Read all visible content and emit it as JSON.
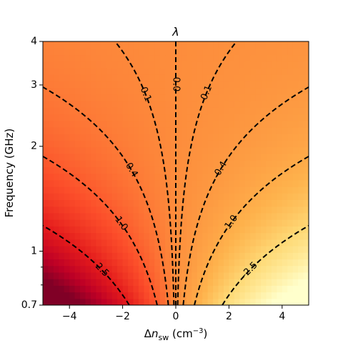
{
  "chart_data": {
    "type": "heatmap",
    "title": "λ",
    "xlabel_prefix": "Δ",
    "xlabel_var": "n",
    "xlabel_sub": "sw",
    "xlabel_unit": " (cm",
    "xlabel_unit_exp": "−3",
    "xlabel_unit_close": ")",
    "ylabel": "Frequency (GHz)",
    "xlim": [
      -5,
      5
    ],
    "ylim": [
      0.7,
      4
    ],
    "yscale": "log",
    "xticks": [
      {
        "value": -4,
        "label": "−4"
      },
      {
        "value": -2,
        "label": "−2"
      },
      {
        "value": 0,
        "label": "0"
      },
      {
        "value": 2,
        "label": "2"
      },
      {
        "value": 4,
        "label": "4"
      }
    ],
    "yticks": [
      {
        "value": 0.7,
        "label": "0.7"
      },
      {
        "value": 1,
        "label": "1"
      },
      {
        "value": 2,
        "label": "2"
      },
      {
        "value": 3,
        "label": "3"
      },
      {
        "value": 4,
        "label": "4"
      }
    ],
    "colormap": "YlOrRd",
    "color_range": [
      -5,
      5
    ],
    "grid": false,
    "field": "lambda(dn, f) = -0.7 * dn / f^2",
    "contour_levels": [
      {
        "level": 2.5,
        "label": "2.5",
        "side": "left"
      },
      {
        "level": 1.0,
        "label": "1.0",
        "side": "left"
      },
      {
        "level": 0.4,
        "label": "0.4",
        "side": "left"
      },
      {
        "level": 0.1,
        "label": "0.1",
        "side": "left"
      },
      {
        "level": 0.0,
        "label": "0.0",
        "side": "center"
      },
      {
        "level": -0.1,
        "label": "-0.1",
        "side": "right"
      },
      {
        "level": -0.4,
        "label": "-0.4",
        "side": "right"
      },
      {
        "level": -1.0,
        "label": "-1.0",
        "side": "right"
      },
      {
        "level": -2.5,
        "label": "-2.5",
        "side": "right"
      }
    ],
    "colors": {
      "contour": "#000000",
      "axes": "#000000"
    }
  }
}
